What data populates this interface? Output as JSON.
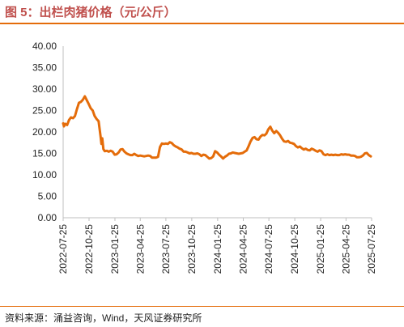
{
  "title": "图 5：出栏肉猪价格（元/公斤）",
  "source": "资料来源：涌益咨询，Wind，天风证券研究所",
  "colors": {
    "line": "#e46c0a",
    "title": "#c0504d",
    "rule": "#e46c0a",
    "axis": "#bfbfbf"
  },
  "chart_data": {
    "type": "line",
    "title": "出栏肉猪价格（元/公斤）",
    "xlabel": "",
    "ylabel": "",
    "ylim": [
      0,
      40
    ],
    "yticks": [
      "0.00",
      "5.00",
      "10.00",
      "15.00",
      "20.00",
      "25.00",
      "30.00",
      "35.00",
      "40.00"
    ],
    "xticks": [
      "2022-07-25",
      "2022-10-25",
      "2023-01-25",
      "2023-04-25",
      "2023-07-25",
      "2023-10-25",
      "2024-01-25",
      "2024-04-25",
      "2024-07-25",
      "2024-10-25",
      "2025-01-25",
      "2025-04-25",
      "2025-07-25"
    ],
    "grid": false,
    "legend": "none",
    "series": [
      {
        "name": "",
        "points": [
          [
            "2022-07-25",
            22.0
          ],
          [
            "2022-07-28",
            21.3
          ],
          [
            "2022-08-01",
            21.9
          ],
          [
            "2022-08-08",
            21.6
          ],
          [
            "2022-08-15",
            22.8
          ],
          [
            "2022-08-22",
            23.4
          ],
          [
            "2022-08-29",
            23.2
          ],
          [
            "2022-09-05",
            23.7
          ],
          [
            "2022-09-12",
            25.3
          ],
          [
            "2022-09-19",
            26.8
          ],
          [
            "2022-09-26",
            27.0
          ],
          [
            "2022-10-03",
            27.5
          ],
          [
            "2022-10-10",
            28.3
          ],
          [
            "2022-10-17",
            27.4
          ],
          [
            "2022-10-24",
            26.5
          ],
          [
            "2022-10-31",
            25.5
          ],
          [
            "2022-11-07",
            25.0
          ],
          [
            "2022-11-14",
            23.7
          ],
          [
            "2022-11-21",
            23.0
          ],
          [
            "2022-11-28",
            22.5
          ],
          [
            "2022-12-05",
            19.0
          ],
          [
            "2022-12-08",
            17.2
          ],
          [
            "2022-12-11",
            18.5
          ],
          [
            "2022-12-15",
            16.0
          ],
          [
            "2022-12-20",
            15.5
          ],
          [
            "2022-12-27",
            15.6
          ],
          [
            "2023-01-03",
            15.4
          ],
          [
            "2023-01-10",
            15.6
          ],
          [
            "2023-01-17",
            15.4
          ],
          [
            "2023-01-24",
            14.7
          ],
          [
            "2023-01-31",
            14.8
          ],
          [
            "2023-02-07",
            15.2
          ],
          [
            "2023-02-14",
            15.9
          ],
          [
            "2023-02-21",
            16.0
          ],
          [
            "2023-02-28",
            15.4
          ],
          [
            "2023-03-07",
            15.0
          ],
          [
            "2023-03-14",
            14.8
          ],
          [
            "2023-03-21",
            14.6
          ],
          [
            "2023-03-28",
            14.6
          ],
          [
            "2023-04-04",
            14.9
          ],
          [
            "2023-04-11",
            14.6
          ],
          [
            "2023-04-18",
            14.4
          ],
          [
            "2023-04-25",
            14.5
          ],
          [
            "2023-05-02",
            14.4
          ],
          [
            "2023-05-09",
            14.3
          ],
          [
            "2023-05-16",
            14.4
          ],
          [
            "2023-05-23",
            14.5
          ],
          [
            "2023-05-30",
            14.4
          ],
          [
            "2023-06-06",
            14.0
          ],
          [
            "2023-06-13",
            14.0
          ],
          [
            "2023-06-20",
            14.0
          ],
          [
            "2023-06-27",
            14.2
          ],
          [
            "2023-07-04",
            16.5
          ],
          [
            "2023-07-11",
            17.3
          ],
          [
            "2023-07-18",
            17.2
          ],
          [
            "2023-07-25",
            17.3
          ],
          [
            "2023-08-01",
            17.2
          ],
          [
            "2023-08-08",
            17.6
          ],
          [
            "2023-08-15",
            17.4
          ],
          [
            "2023-08-22",
            16.9
          ],
          [
            "2023-08-29",
            16.6
          ],
          [
            "2023-09-05",
            16.4
          ],
          [
            "2023-09-12",
            16.1
          ],
          [
            "2023-09-19",
            15.9
          ],
          [
            "2023-09-26",
            15.4
          ],
          [
            "2023-10-03",
            15.4
          ],
          [
            "2023-10-10",
            15.2
          ],
          [
            "2023-10-17",
            15.0
          ],
          [
            "2023-10-24",
            15.1
          ],
          [
            "2023-10-31",
            14.9
          ],
          [
            "2023-11-07",
            14.9
          ],
          [
            "2023-11-14",
            15.0
          ],
          [
            "2023-11-21",
            14.8
          ],
          [
            "2023-11-28",
            14.4
          ],
          [
            "2023-12-05",
            14.7
          ],
          [
            "2023-12-12",
            14.6
          ],
          [
            "2023-12-19",
            14.2
          ],
          [
            "2023-12-26",
            13.8
          ],
          [
            "2024-01-02",
            13.9
          ],
          [
            "2024-01-09",
            14.3
          ],
          [
            "2024-01-16",
            15.5
          ],
          [
            "2024-01-23",
            15.2
          ],
          [
            "2024-01-30",
            14.7
          ],
          [
            "2024-02-06",
            14.3
          ],
          [
            "2024-02-13",
            13.8
          ],
          [
            "2024-02-20",
            14.2
          ],
          [
            "2024-02-27",
            14.5
          ],
          [
            "2024-03-05",
            14.9
          ],
          [
            "2024-03-12",
            15.0
          ],
          [
            "2024-03-19",
            15.2
          ],
          [
            "2024-03-26",
            15.1
          ],
          [
            "2024-04-02",
            15.0
          ],
          [
            "2024-04-09",
            14.9
          ],
          [
            "2024-04-16",
            15.0
          ],
          [
            "2024-04-23",
            15.1
          ],
          [
            "2024-04-30",
            15.4
          ],
          [
            "2024-05-07",
            15.7
          ],
          [
            "2024-05-14",
            16.7
          ],
          [
            "2024-05-21",
            17.8
          ],
          [
            "2024-05-28",
            18.6
          ],
          [
            "2024-06-04",
            18.8
          ],
          [
            "2024-06-11",
            18.3
          ],
          [
            "2024-06-18",
            18.2
          ],
          [
            "2024-06-25",
            18.9
          ],
          [
            "2024-07-02",
            19.3
          ],
          [
            "2024-07-09",
            19.2
          ],
          [
            "2024-07-16",
            19.6
          ],
          [
            "2024-07-23",
            20.6
          ],
          [
            "2024-07-30",
            21.2
          ],
          [
            "2024-08-06",
            20.3
          ],
          [
            "2024-08-13",
            19.7
          ],
          [
            "2024-08-20",
            20.2
          ],
          [
            "2024-08-27",
            19.8
          ],
          [
            "2024-09-03",
            19.2
          ],
          [
            "2024-09-10",
            18.4
          ],
          [
            "2024-09-17",
            17.8
          ],
          [
            "2024-09-24",
            17.7
          ],
          [
            "2024-10-01",
            17.9
          ],
          [
            "2024-10-08",
            17.5
          ],
          [
            "2024-10-15",
            17.4
          ],
          [
            "2024-10-22",
            17.2
          ],
          [
            "2024-10-29",
            16.7
          ],
          [
            "2024-11-05",
            16.4
          ],
          [
            "2024-11-12",
            16.6
          ],
          [
            "2024-11-19",
            16.2
          ],
          [
            "2024-11-26",
            15.9
          ],
          [
            "2024-12-03",
            16.1
          ],
          [
            "2024-12-10",
            15.8
          ],
          [
            "2024-12-17",
            15.7
          ],
          [
            "2024-12-24",
            16.1
          ],
          [
            "2024-12-31",
            15.9
          ],
          [
            "2025-01-07",
            15.6
          ],
          [
            "2025-01-14",
            15.4
          ],
          [
            "2025-01-21",
            15.7
          ],
          [
            "2025-01-28",
            15.5
          ],
          [
            "2025-02-04",
            14.8
          ],
          [
            "2025-02-11",
            14.6
          ],
          [
            "2025-02-18",
            14.8
          ],
          [
            "2025-02-25",
            14.6
          ],
          [
            "2025-03-04",
            14.7
          ],
          [
            "2025-03-11",
            14.6
          ],
          [
            "2025-03-18",
            14.7
          ],
          [
            "2025-03-25",
            14.6
          ],
          [
            "2025-04-01",
            14.6
          ],
          [
            "2025-04-08",
            14.8
          ],
          [
            "2025-04-15",
            14.7
          ],
          [
            "2025-04-22",
            14.8
          ],
          [
            "2025-04-29",
            14.7
          ],
          [
            "2025-05-06",
            14.7
          ],
          [
            "2025-05-13",
            14.5
          ],
          [
            "2025-05-20",
            14.5
          ],
          [
            "2025-05-27",
            14.4
          ],
          [
            "2025-06-03",
            14.1
          ],
          [
            "2025-06-10",
            14.1
          ],
          [
            "2025-06-17",
            14.2
          ],
          [
            "2025-06-24",
            14.5
          ],
          [
            "2025-07-01",
            15.0
          ],
          [
            "2025-07-08",
            15.1
          ],
          [
            "2025-07-15",
            14.6
          ],
          [
            "2025-07-22",
            14.3
          ]
        ]
      }
    ]
  }
}
